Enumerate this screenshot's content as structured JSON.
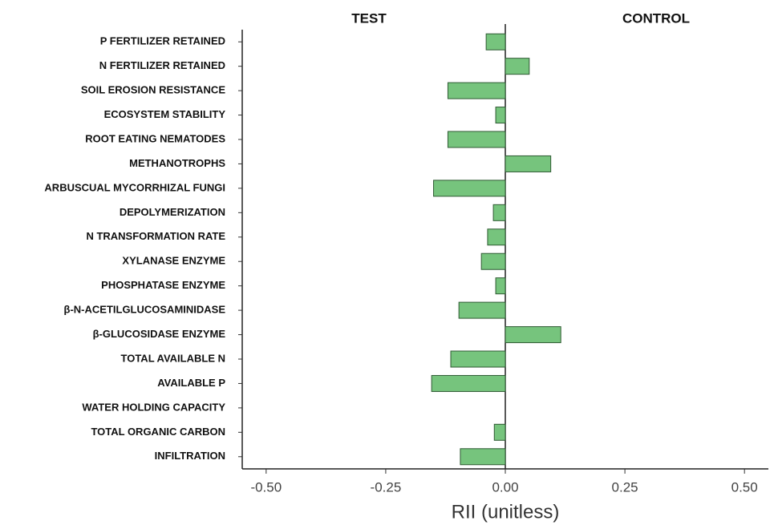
{
  "chart_data": {
    "type": "hbar",
    "annotations": [
      "TEST",
      "CONTROL"
    ],
    "xlabel": "RII (unitless)",
    "categories": [
      "P FERTILIZER RETAINED",
      "N FERTILIZER RETAINED",
      "SOIL EROSION RESISTANCE",
      "ECOSYSTEM STABILITY",
      "ROOT EATING NEMATODES",
      "METHANOTROPHS",
      "ARBUSCUAL MYCORRHIZAL FUNGI",
      "DEPOLYMERIZATION",
      "N TRANSFORMATION RATE",
      "XYLANASE ENZYME",
      "PHOSPHATASE ENZYME",
      "β-N-ACETILGLUCOSAMINIDASE",
      "β-GLUCOSIDASE ENZYME",
      "TOTAL AVAILABLE N",
      "AVAILABLE P",
      "WATER HOLDING CAPACITY",
      "TOTAL ORGANIC CARBON",
      "INFILTRATION"
    ],
    "values": [
      -0.04,
      0.05,
      -0.12,
      -0.02,
      -0.12,
      0.095,
      -0.15,
      -0.025,
      -0.037,
      -0.05,
      -0.02,
      -0.097,
      0.116,
      -0.114,
      -0.154,
      0,
      -0.023,
      -0.094
    ],
    "color": "#76c47d",
    "xlim": [
      -0.55,
      0.55
    ],
    "xticks": [
      {
        "value": -0.5,
        "label": "-0.50"
      },
      {
        "value": -0.25,
        "label": "-0.25"
      },
      {
        "value": 0,
        "label": "0.00"
      },
      {
        "value": 0.25,
        "label": "0.25"
      },
      {
        "value": 0.5,
        "label": "0.50"
      }
    ],
    "grid": false
  }
}
